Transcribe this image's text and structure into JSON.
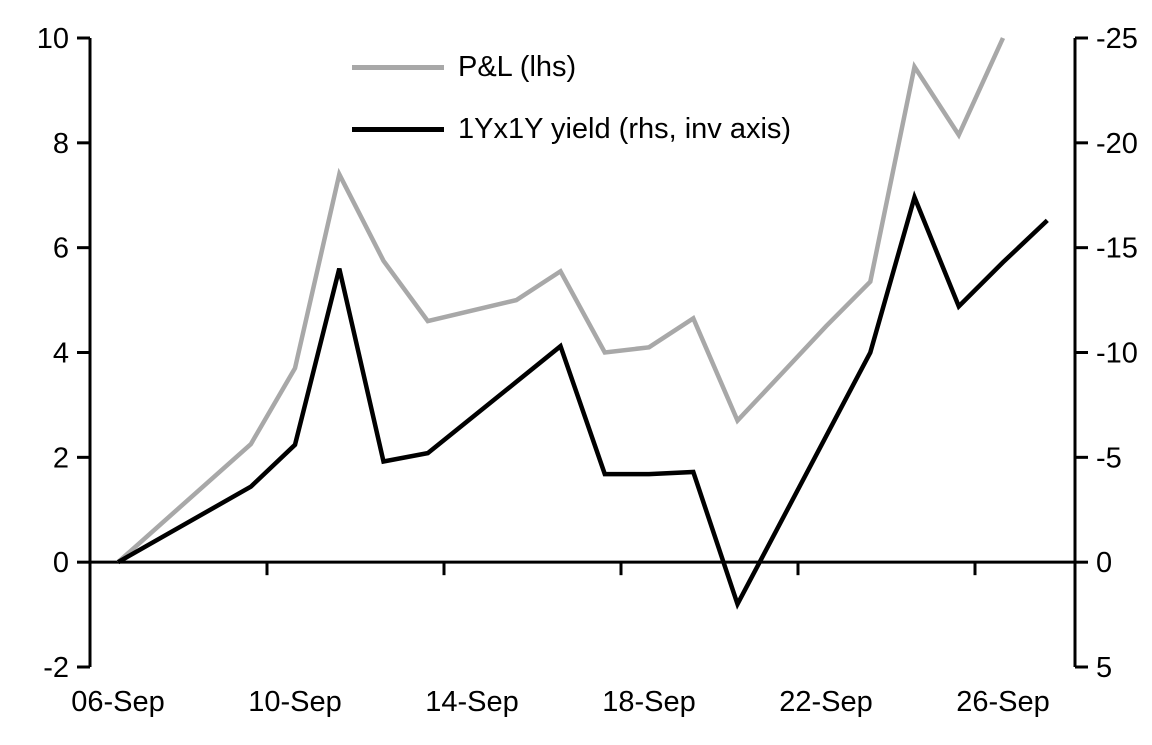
{
  "chart_data": {
    "type": "line",
    "title": "",
    "x_tick_labels": [
      "06-Sep",
      "10-Sep",
      "14-Sep",
      "18-Sep",
      "22-Sep",
      "26-Sep"
    ],
    "x_dates": [
      "06-Sep",
      "09-Sep",
      "10-Sep",
      "11-Sep",
      "12-Sep",
      "13-Sep",
      "15-Sep",
      "16-Sep",
      "17-Sep",
      "18-Sep",
      "19-Sep",
      "20-Sep",
      "21-Sep",
      "22-Sep",
      "23-Sep",
      "24-Sep",
      "25-Sep",
      "26-Sep",
      "27-Sep"
    ],
    "x_days": [
      0,
      3,
      4,
      5,
      6,
      7,
      9,
      10,
      11,
      12,
      13,
      14,
      15,
      16,
      17,
      18,
      19,
      20,
      21
    ],
    "series": [
      {
        "name": "P&L (lhs)",
        "axis": "left",
        "color": "#a8a8a8",
        "values": [
          0,
          2.25,
          3.7,
          7.4,
          5.75,
          4.6,
          5.0,
          5.55,
          4.0,
          4.1,
          4.65,
          2.7,
          3.6,
          4.5,
          5.35,
          9.45,
          8.15,
          10.0,
          null
        ]
      },
      {
        "name": "1Yx1Y yield (rhs, inv axis)",
        "axis": "right",
        "color": "#000000",
        "values": [
          0,
          -3.6,
          -5.6,
          -14.0,
          -4.8,
          -5.2,
          -8.6,
          -10.3,
          -4.2,
          -4.2,
          -4.3,
          2.0,
          -2.0,
          -6.0,
          -10.0,
          -17.4,
          -12.2,
          -14.3,
          -16.3
        ]
      }
    ],
    "left_axis": {
      "max": 10,
      "min": -2,
      "ticks": [
        10,
        8,
        6,
        4,
        2,
        0,
        -2
      ]
    },
    "right_axis": {
      "top": -25,
      "bottom": 5,
      "inverted": true,
      "ticks": [
        -25,
        -20,
        -15,
        -10,
        -5,
        0,
        5
      ]
    },
    "grid": "off",
    "legend_position": "top-center-inside",
    "axis_color": "#000000",
    "background": "#ffffff"
  }
}
